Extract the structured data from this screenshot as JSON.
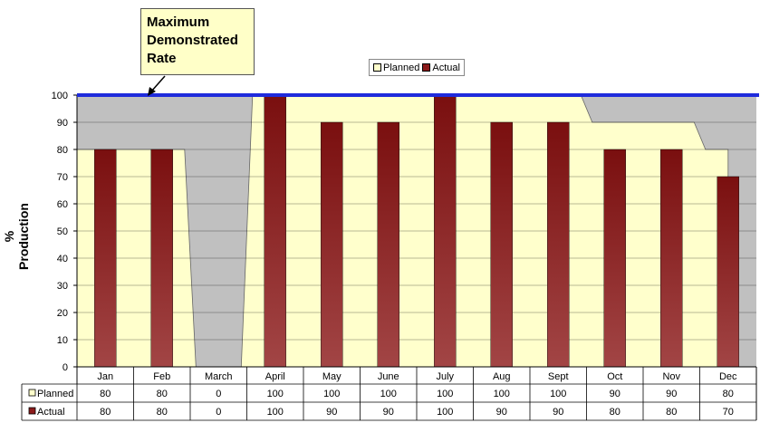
{
  "annotation": {
    "line1": "Maximum",
    "line2": "Demonstrated",
    "line3": "Rate"
  },
  "legend": {
    "planned": "Planned",
    "actual": "Actual"
  },
  "colors": {
    "planned": "#ffffcc",
    "actual": "#8b1a1a",
    "max_rate_line": "#1f2bdc",
    "background_area": "#c0c0c0"
  },
  "chart_data": {
    "type": "bar",
    "title": "",
    "xlabel": "",
    "ylabel": "% Production",
    "ylim": [
      0,
      100
    ],
    "yticks": [
      0,
      10,
      20,
      30,
      40,
      50,
      60,
      70,
      80,
      90,
      100
    ],
    "categories": [
      "Jan",
      "Feb",
      "March",
      "April",
      "May",
      "June",
      "July",
      "Aug",
      "Sept",
      "Oct",
      "Nov",
      "Dec"
    ],
    "series": [
      {
        "name": "Planned",
        "kind": "area",
        "values": [
          80,
          80,
          0,
          100,
          100,
          100,
          100,
          100,
          100,
          90,
          90,
          80
        ]
      },
      {
        "name": "Actual",
        "kind": "bar",
        "values": [
          80,
          80,
          0,
          100,
          90,
          90,
          100,
          90,
          90,
          80,
          80,
          70
        ]
      }
    ],
    "reference_line": {
      "label": "Maximum Demonstrated Rate",
      "value": 100
    },
    "grid": true,
    "legend_position": "top-center",
    "data_table": true
  }
}
